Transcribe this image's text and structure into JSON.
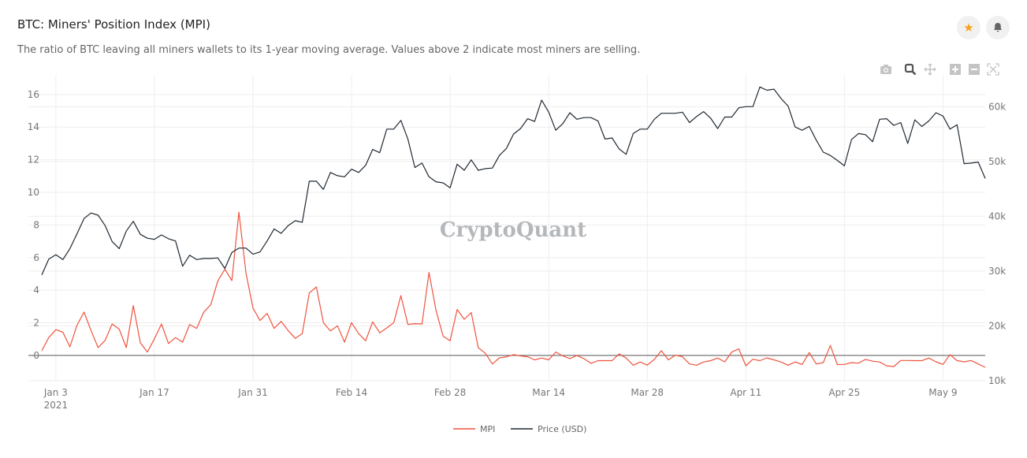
{
  "header": {
    "title": "BTC: Miners' Position Index (MPI)",
    "subtitle": "The ratio of BTC leaving all miners wallets to its 1-year moving average. Values above 2 indicate most miners are selling.",
    "favorite_icon": "star-icon",
    "alert_icon": "bell-icon",
    "favorite_color": "#f7a21b"
  },
  "toolbar": {
    "icons": [
      "camera-icon",
      "zoom-icon",
      "pan-icon",
      "zoom-in-icon",
      "zoom-out-icon",
      "autoscale-icon"
    ]
  },
  "watermark": "CryptoQuant",
  "chart_data": {
    "type": "line",
    "title": "",
    "x_tick_labels": [
      "Jan 3\n2021",
      "Jan 17",
      "Jan 31",
      "Feb 14",
      "Feb 28",
      "Mar 14",
      "Mar 28",
      "Apr 11",
      "Apr 25",
      "May 9"
    ],
    "x_ticks": [
      "2021-01-03",
      "2021-01-17",
      "2021-01-31",
      "2021-02-14",
      "2021-02-28",
      "2021-03-14",
      "2021-03-28",
      "2021-04-11",
      "2021-04-25",
      "2021-05-09"
    ],
    "y_left": {
      "ticks": [
        0,
        2,
        4,
        6,
        8,
        10,
        12,
        14,
        16
      ],
      "range": [
        -1.55,
        17.2
      ]
    },
    "y_right": {
      "ticks": [
        10,
        20,
        30,
        40,
        50,
        60
      ],
      "tick_labels": [
        "10k",
        "20k",
        "30k",
        "40k",
        "50k",
        "60k"
      ],
      "range": [
        10,
        65.8
      ],
      "unit": "thousand USD"
    },
    "grid": true,
    "legend_position": "bottom-center",
    "x": [
      "2021-01-01",
      "2021-01-02",
      "2021-01-03",
      "2021-01-04",
      "2021-01-05",
      "2021-01-06",
      "2021-01-07",
      "2021-01-08",
      "2021-01-09",
      "2021-01-10",
      "2021-01-11",
      "2021-01-12",
      "2021-01-13",
      "2021-01-14",
      "2021-01-15",
      "2021-01-16",
      "2021-01-17",
      "2021-01-18",
      "2021-01-19",
      "2021-01-20",
      "2021-01-21",
      "2021-01-22",
      "2021-01-23",
      "2021-01-24",
      "2021-01-25",
      "2021-01-26",
      "2021-01-27",
      "2021-01-28",
      "2021-01-29",
      "2021-01-30",
      "2021-01-31",
      "2021-02-01",
      "2021-02-02",
      "2021-02-03",
      "2021-02-04",
      "2021-02-05",
      "2021-02-06",
      "2021-02-07",
      "2021-02-08",
      "2021-02-09",
      "2021-02-10",
      "2021-02-11",
      "2021-02-12",
      "2021-02-13",
      "2021-02-14",
      "2021-02-15",
      "2021-02-16",
      "2021-02-17",
      "2021-02-18",
      "2021-02-19",
      "2021-02-20",
      "2021-02-21",
      "2021-02-22",
      "2021-02-23",
      "2021-02-24",
      "2021-02-25",
      "2021-02-26",
      "2021-02-27",
      "2021-02-28",
      "2021-03-01",
      "2021-03-02",
      "2021-03-03",
      "2021-03-04",
      "2021-03-05",
      "2021-03-06",
      "2021-03-07",
      "2021-03-08",
      "2021-03-09",
      "2021-03-10",
      "2021-03-11",
      "2021-03-12",
      "2021-03-13",
      "2021-03-14",
      "2021-03-15",
      "2021-03-16",
      "2021-03-17",
      "2021-03-18",
      "2021-03-19",
      "2021-03-20",
      "2021-03-21",
      "2021-03-22",
      "2021-03-23",
      "2021-03-24",
      "2021-03-25",
      "2021-03-26",
      "2021-03-27",
      "2021-03-28",
      "2021-03-29",
      "2021-03-30",
      "2021-03-31",
      "2021-04-01",
      "2021-04-02",
      "2021-04-03",
      "2021-04-04",
      "2021-04-05",
      "2021-04-06",
      "2021-04-07",
      "2021-04-08",
      "2021-04-09",
      "2021-04-10",
      "2021-04-11",
      "2021-04-12",
      "2021-04-13",
      "2021-04-14",
      "2021-04-15",
      "2021-04-16",
      "2021-04-17",
      "2021-04-18",
      "2021-04-19",
      "2021-04-20",
      "2021-04-21",
      "2021-04-22",
      "2021-04-23",
      "2021-04-24",
      "2021-04-25",
      "2021-04-26",
      "2021-04-27",
      "2021-04-28",
      "2021-04-29",
      "2021-04-30",
      "2021-05-01",
      "2021-05-02",
      "2021-05-03",
      "2021-05-04",
      "2021-05-05",
      "2021-05-06",
      "2021-05-07",
      "2021-05-08",
      "2021-05-09",
      "2021-05-10",
      "2021-05-11",
      "2021-05-12",
      "2021-05-13",
      "2021-05-14",
      "2021-05-15"
    ],
    "series": [
      {
        "name": "MPI",
        "axis": "left",
        "color": "#f0533d",
        "values": [
          0.29,
          1.1,
          1.58,
          1.42,
          0.53,
          1.85,
          2.66,
          1.53,
          0.48,
          0.93,
          1.93,
          1.61,
          0.48,
          3.06,
          0.77,
          0.21,
          1.02,
          1.93,
          0.73,
          1.1,
          0.82,
          1.9,
          1.66,
          2.66,
          3.11,
          4.56,
          5.29,
          4.59,
          8.78,
          5.04,
          2.9,
          2.14,
          2.58,
          1.66,
          2.09,
          1.53,
          1.05,
          1.34,
          3.83,
          4.2,
          2.01,
          1.5,
          1.82,
          0.82,
          2.01,
          1.34,
          0.9,
          2.06,
          1.39,
          1.69,
          2.01,
          3.67,
          1.9,
          1.95,
          1.93,
          5.09,
          2.76,
          1.18,
          0.9,
          2.82,
          2.22,
          2.63,
          0.48,
          0.13,
          -0.52,
          -0.15,
          -0.08,
          0.05,
          -0.03,
          -0.08,
          -0.27,
          -0.16,
          -0.27,
          0.21,
          -0.03,
          -0.19,
          0,
          -0.19,
          -0.48,
          -0.32,
          -0.32,
          -0.32,
          0.1,
          -0.16,
          -0.6,
          -0.4,
          -0.6,
          -0.24,
          0.29,
          -0.27,
          0.02,
          -0.08,
          -0.52,
          -0.6,
          -0.4,
          -0.32,
          -0.16,
          -0.39,
          0.21,
          0.4,
          -0.63,
          -0.23,
          -0.32,
          -0.15,
          -0.27,
          -0.4,
          -0.6,
          -0.4,
          -0.55,
          0.18,
          -0.52,
          -0.44,
          0.61,
          -0.56,
          -0.55,
          -0.44,
          -0.47,
          -0.24,
          -0.35,
          -0.4,
          -0.63,
          -0.68,
          -0.31,
          -0.31,
          -0.32,
          -0.32,
          -0.16,
          -0.39,
          -0.55,
          0.05,
          -0.32,
          -0.39,
          -0.31,
          -0.52,
          -0.73
        ]
      },
      {
        "name": "Price (USD)",
        "axis": "right",
        "color": "#1f2933",
        "values": [
          29.3,
          32.2,
          33.0,
          32.1,
          34.1,
          36.8,
          39.6,
          40.6,
          40.2,
          38.3,
          35.4,
          34.1,
          37.3,
          39.1,
          36.7,
          36.0,
          35.8,
          36.6,
          35.9,
          35.5,
          30.9,
          32.9,
          32.1,
          32.3,
          32.3,
          32.4,
          30.5,
          33.4,
          34.2,
          34.2,
          33.1,
          33.5,
          35.5,
          37.7,
          36.9,
          38.3,
          39.2,
          38.9,
          46.4,
          46.4,
          44.9,
          48.0,
          47.4,
          47.2,
          48.6,
          48.0,
          49.3,
          52.2,
          51.6,
          55.9,
          55.9,
          57.5,
          54.1,
          48.9,
          49.7,
          47.2,
          46.3,
          46.1,
          45.2,
          49.5,
          48.4,
          50.3,
          48.4,
          48.7,
          48.8,
          51.1,
          52.4,
          55.0,
          56.0,
          57.8,
          57.3,
          61.2,
          59.0,
          55.7,
          56.9,
          58.9,
          57.7,
          58.0,
          58.0,
          57.4,
          54.1,
          54.3,
          52.3,
          51.3,
          55.1,
          55.9,
          55.9,
          57.7,
          58.8,
          58.8,
          58.8,
          59.0,
          57.1,
          58.2,
          59.1,
          57.9,
          56.0,
          58.1,
          58.1,
          59.8,
          60.0,
          60.0,
          63.6,
          63.0,
          63.2,
          61.5,
          60.1,
          56.3,
          55.7,
          56.4,
          53.9,
          51.7,
          51.1,
          50.2,
          49.2,
          54.0,
          55.1,
          54.9,
          53.6,
          57.7,
          57.8,
          56.6,
          57.1,
          53.3,
          57.6,
          56.4,
          57.4,
          58.9,
          58.3,
          55.9,
          56.7,
          49.6,
          49.7,
          49.9,
          46.9
        ]
      }
    ]
  }
}
